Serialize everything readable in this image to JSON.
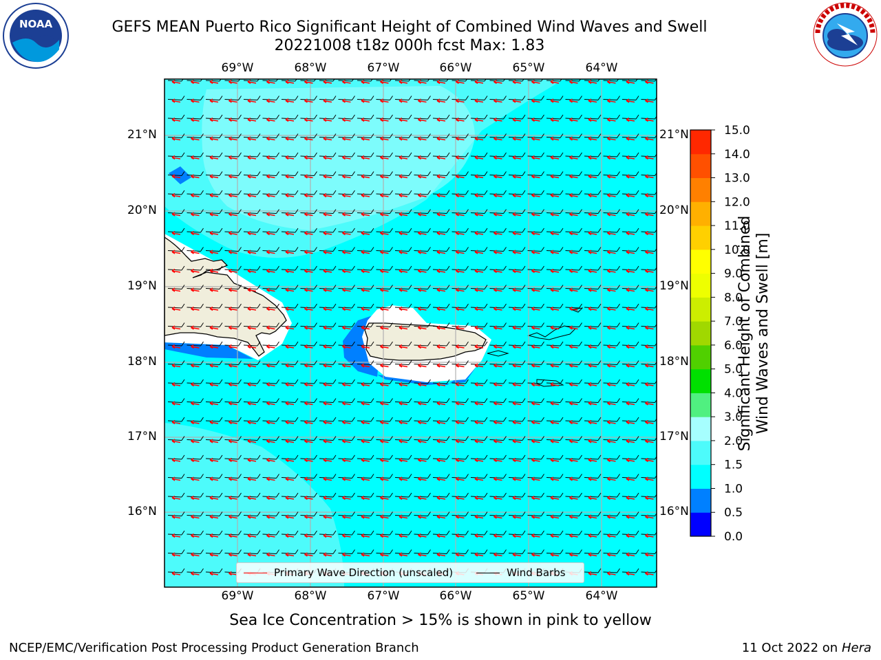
{
  "title": {
    "line1": "GEFS MEAN Puerto Rico Significant Height of Combined Wind Waves and Swell",
    "line2": "20221008 t18z 000h fcst   Max: 1.83"
  },
  "logos": {
    "left": "noaa-logo",
    "right": "national-weather-service-logo",
    "left_text": "NOAA",
    "right_text": "NATIONAL WEATHER SERVICE"
  },
  "map": {
    "extent": {
      "lon_min": -70.0,
      "lon_max": -63.25,
      "lat_min": 15.0,
      "lat_max": 21.75
    },
    "lon_ticks": [
      {
        "value": -69,
        "label": "69°W"
      },
      {
        "value": -68,
        "label": "68°W"
      },
      {
        "value": -67,
        "label": "67°W"
      },
      {
        "value": -66,
        "label": "66°W"
      },
      {
        "value": -65,
        "label": "65°W"
      },
      {
        "value": -64,
        "label": "64°W"
      }
    ],
    "lat_ticks": [
      {
        "value": 21,
        "label": "21°N"
      },
      {
        "value": 20,
        "label": "20°N"
      },
      {
        "value": 19,
        "label": "19°N"
      },
      {
        "value": 18,
        "label": "18°N"
      },
      {
        "value": 17,
        "label": "17°N"
      },
      {
        "value": 16,
        "label": "16°N"
      }
    ],
    "colors": {
      "sea_main": "#00ffff",
      "sea_light": "#4dfbfb",
      "sea_lighter": "#a6fefe",
      "sea_blue": "#0080ff",
      "land": "#f0eedc",
      "wave_arrow": "#ff0000",
      "barb": "#000000",
      "grid": "#b0b0b0"
    }
  },
  "colorbar": {
    "label_line1": "Significant Height of Combined",
    "label_line2": "Wind Waves and Swell [m]",
    "ticks": [
      "0.0",
      "0.5",
      "1.0",
      "1.5",
      "2.0",
      "3.0",
      "4.0",
      "5.0",
      "6.0",
      "7.0",
      "8.0",
      "9.0",
      "10.0",
      "11.0",
      "12.0",
      "13.0",
      "14.0",
      "15.0"
    ],
    "colors": [
      "#0000ff",
      "#0080ff",
      "#00ffff",
      "#4dfbfb",
      "#a6fefe",
      "#50f080",
      "#00e000",
      "#50d000",
      "#a0d800",
      "#ccee00",
      "#eeff00",
      "#ffff00",
      "#ffd000",
      "#ffb000",
      "#ff8000",
      "#ff5000",
      "#ff2800"
    ]
  },
  "legend": {
    "wave": "Primary Wave Direction (unscaled)",
    "barb": "Wind Barbs"
  },
  "footer": {
    "caption": "Sea Ice Concentration > 15% is shown in pink to yellow",
    "left": "NCEP/EMC/Verification Post Processing Product Generation Branch",
    "right_prefix": "11 Oct 2022 on ",
    "right_machine": "Hera"
  }
}
